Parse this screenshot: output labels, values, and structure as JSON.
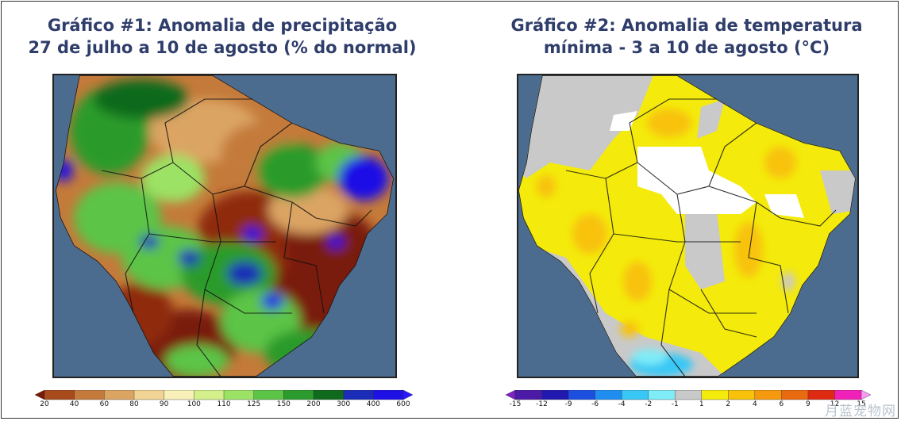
{
  "chart1": {
    "title_line1": "Gráfico #1: Anomalia de precipitação",
    "title_line2": "27 de julho a 10 de agosto (% do normal)",
    "legend_values": [
      "20",
      "40",
      "60",
      "80",
      "90",
      "100",
      "110",
      "125",
      "150",
      "200",
      "300",
      "400",
      "600"
    ],
    "legend_colors": [
      "#7a1a08",
      "#a84a1b",
      "#c47a3a",
      "#dba463",
      "#f1d393",
      "#f7f0b8",
      "#d3f08a",
      "#9be265",
      "#5cc447",
      "#2a9b2c",
      "#0f6a1d",
      "#1a2cb8",
      "#1f10e6",
      "#2a18ff"
    ]
  },
  "chart2": {
    "title_line1": "Gráfico #2: Anomalia de temperatura",
    "title_line2": "mínima - 3 a 10 de agosto (°C)",
    "legend_values": [
      "-15",
      "-12",
      "-9",
      "-6",
      "-4",
      "-2",
      "-1",
      "1",
      "2",
      "4",
      "6",
      "9",
      "12",
      "15"
    ],
    "legend_colors": [
      "#7d22c4",
      "#4b1aa6",
      "#2119b0",
      "#1c4fe0",
      "#1f8ef0",
      "#39c8f5",
      "#7fecf7",
      "#c9c9c9",
      "#f4ea0c",
      "#f8c20a",
      "#f59a0e",
      "#ea6a10",
      "#df2a12",
      "#f020b8",
      "#f59af0"
    ]
  },
  "watermark": "月蓝宠物网",
  "colors": {
    "ocean": "#4b6b8f",
    "title": "#2f3d6b"
  }
}
